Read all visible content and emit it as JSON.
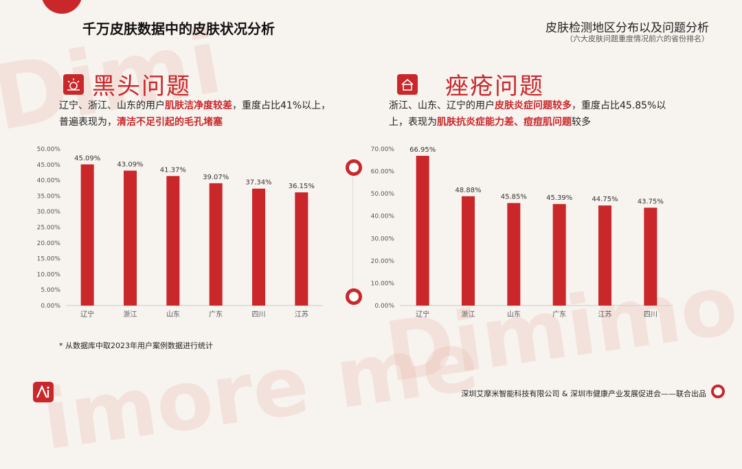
{
  "header": {
    "title": "千万皮肤数据中的皮肤状况分析",
    "right_title": "皮肤检测地区分布以及问题分析",
    "right_subtitle": "（六大皮肤问题重度情况前六的省份排名）"
  },
  "blackhead": {
    "title": "黑头问题",
    "desc": {
      "p1": "辽宁、浙江、山东的用户",
      "h1": "肌肤洁净度较差",
      "p2": "，重度占比41%以上，普遍表现为，",
      "h2": "清洁不足引起的毛孔堵塞"
    }
  },
  "acne": {
    "title": "痤疮问题",
    "desc": {
      "p1": "浙江、山东、辽宁的用户",
      "h1": "皮肤炎症问题较多",
      "p2": "，重度占比45.85%以上，表现为",
      "h2": "肌肤抗炎症能力差、痘痘肌问题",
      "p3": "较多"
    }
  },
  "footnote": "* 从数据库中取2023年用户案例数据进行统计",
  "footer": "深圳艾摩米智能科技有限公司 & 深圳市健康产业发展促进会——联合出品",
  "colors": {
    "accent": "#c9272a",
    "bar": "#c9272a"
  },
  "chart_data": [
    {
      "type": "bar",
      "categories": [
        "辽宁",
        "浙江",
        "山东",
        "广东",
        "四川",
        "江苏"
      ],
      "values": [
        45.09,
        43.09,
        41.37,
        39.07,
        37.34,
        36.15
      ],
      "value_labels": [
        "45.09%",
        "43.09%",
        "41.37%",
        "39.07%",
        "37.34%",
        "36.15%"
      ],
      "ylim": [
        0,
        50
      ],
      "yticks": [
        0,
        5,
        10,
        15,
        20,
        25,
        30,
        35,
        40,
        45,
        50
      ],
      "ytick_labels": [
        "0.00%",
        "5.00%",
        "10.00%",
        "15.00%",
        "20.00%",
        "25.00%",
        "30.00%",
        "35.00%",
        "40.00%",
        "45.00%",
        "50.00%"
      ],
      "grid": false
    },
    {
      "type": "bar",
      "categories": [
        "辽宁",
        "浙江",
        "山东",
        "广东",
        "江苏",
        "四川"
      ],
      "values": [
        66.95,
        48.88,
        45.85,
        45.39,
        44.75,
        43.75
      ],
      "value_labels": [
        "66.95%",
        "48.88%",
        "45.85%",
        "45.39%",
        "44.75%",
        "43.75%"
      ],
      "ylim": [
        0,
        70
      ],
      "yticks": [
        0,
        10,
        20,
        30,
        40,
        50,
        60,
        70
      ],
      "ytick_labels": [
        "0.00%",
        "10.00%",
        "20.00%",
        "30.00%",
        "40.00%",
        "50.00%",
        "60.00%",
        "70.00%"
      ],
      "grid": false
    }
  ]
}
